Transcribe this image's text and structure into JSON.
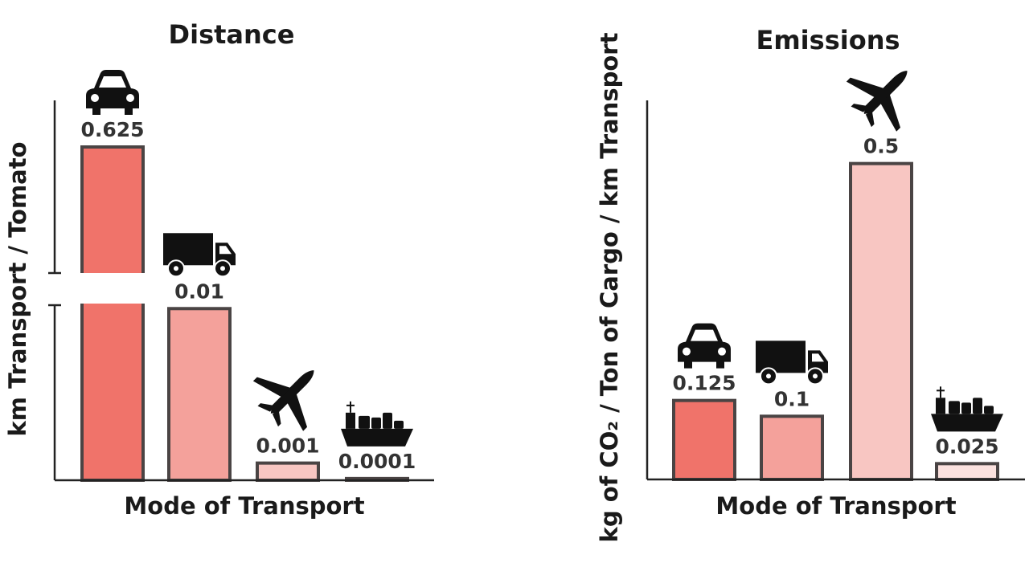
{
  "chart_data": [
    {
      "type": "bar",
      "title": "Distance",
      "y_label": "km Transport / Tomato",
      "x_label": "Mode of Transport",
      "categories": [
        null,
        null,
        null,
        null
      ],
      "values": [
        0.625,
        0.01,
        0.001,
        0.0001
      ],
      "colors": [
        "#f0736a",
        "#f4a19b",
        "#f8c6c2",
        "#fbe1de"
      ],
      "ylim": [
        0,
        0.0102
      ],
      "axis_break": true
    },
    {
      "type": "bar",
      "title": "Emissions",
      "y_label": "kg of CO₂ / Ton of Cargo / km Transport",
      "x_label": "Mode of Transport",
      "categories": [
        null,
        null,
        null,
        null
      ],
      "values": [
        0.125,
        0.1,
        0.5,
        0.025
      ],
      "colors": [
        "#f0736a",
        "#f4a19b",
        "#f8c6c2",
        "#fbe1de"
      ],
      "ylim": [
        0,
        0.6
      ]
    }
  ]
}
